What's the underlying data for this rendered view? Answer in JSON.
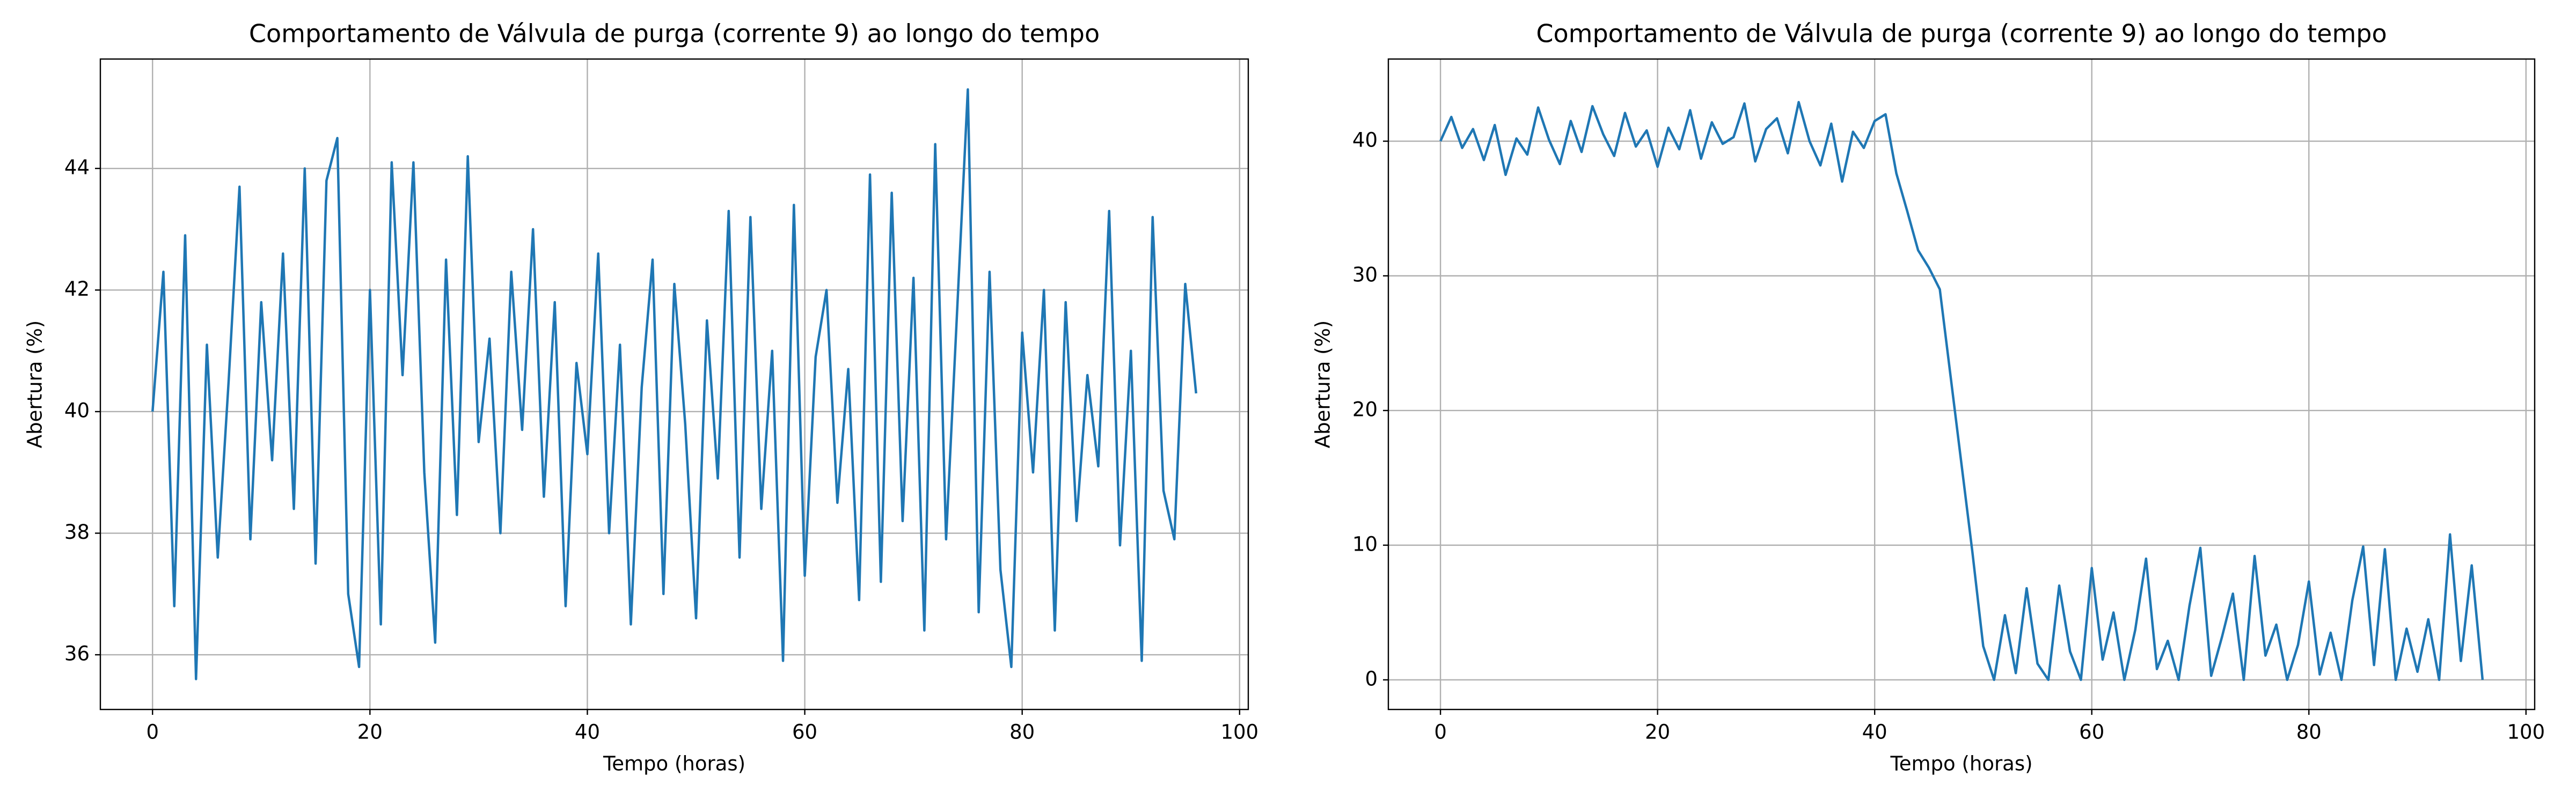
{
  "chart_data": [
    {
      "type": "line",
      "title": "Comportamento de Válvula de purga (corrente 9) ao longo do tempo",
      "xlabel": "Tempo (horas)",
      "ylabel": "Abertura (%)",
      "x": [
        0,
        1,
        2,
        3,
        4,
        5,
        6,
        7,
        8,
        9,
        10,
        11,
        12,
        13,
        14,
        15,
        16,
        17,
        18,
        19,
        20,
        21,
        22,
        23,
        24,
        25,
        26,
        27,
        28,
        29,
        30,
        31,
        32,
        33,
        34,
        35,
        36,
        37,
        38,
        39,
        40,
        41,
        42,
        43,
        44,
        45,
        46,
        47,
        48,
        49,
        50,
        51,
        52,
        53,
        54,
        55,
        56,
        57,
        58,
        59,
        60,
        61,
        62,
        63,
        64,
        65,
        66,
        67,
        68,
        69,
        70,
        71,
        72,
        73,
        74,
        75,
        76,
        77,
        78,
        79,
        80,
        81,
        82,
        83,
        84,
        85,
        86,
        87,
        88,
        89,
        90,
        91,
        92,
        93,
        94,
        95,
        96
      ],
      "values": [
        40.0,
        42.3,
        36.8,
        42.9,
        35.6,
        41.1,
        37.6,
        40.5,
        43.7,
        37.9,
        41.8,
        39.2,
        42.6,
        38.4,
        44.0,
        37.5,
        43.8,
        44.5,
        37.0,
        35.8,
        42.0,
        36.5,
        44.1,
        40.6,
        44.1,
        39.0,
        36.2,
        42.5,
        38.3,
        44.2,
        39.5,
        41.2,
        38.0,
        42.3,
        39.7,
        43.0,
        38.6,
        41.8,
        36.8,
        40.8,
        39.3,
        42.6,
        38.0,
        41.1,
        36.5,
        40.4,
        42.5,
        37.0,
        42.1,
        39.8,
        36.6,
        41.5,
        38.9,
        43.3,
        37.6,
        43.2,
        38.4,
        41.0,
        35.9,
        43.4,
        37.3,
        40.9,
        42.0,
        38.5,
        40.7,
        36.9,
        43.9,
        37.2,
        43.6,
        38.2,
        42.2,
        36.4,
        44.4,
        37.9,
        41.6,
        45.3,
        36.7,
        42.3,
        37.4,
        35.8,
        41.3,
        39.0,
        42.0,
        36.4,
        41.8,
        38.2,
        40.6,
        39.1,
        43.3,
        37.8,
        41.0,
        35.9,
        43.2,
        38.7,
        37.9,
        42.1,
        40.3
      ],
      "color": "#1f77b4",
      "xlim": [
        -4.8,
        100.8
      ],
      "ylim": [
        35.1,
        45.8
      ],
      "xticks": [
        0,
        20,
        40,
        60,
        80,
        100
      ],
      "yticks": [
        36,
        38,
        40,
        42,
        44
      ],
      "grid": true
    },
    {
      "type": "line",
      "title": "Comportamento de Válvula de purga (corrente 9) ao longo do tempo",
      "xlabel": "Tempo (horas)",
      "ylabel": "Abertura (%)",
      "x": [
        0,
        1,
        2,
        3,
        4,
        5,
        6,
        7,
        8,
        9,
        10,
        11,
        12,
        13,
        14,
        15,
        16,
        17,
        18,
        19,
        20,
        21,
        22,
        23,
        24,
        25,
        26,
        27,
        28,
        29,
        30,
        31,
        32,
        33,
        34,
        35,
        36,
        37,
        38,
        39,
        40,
        41,
        42,
        43,
        44,
        45,
        46,
        47,
        48,
        49,
        50,
        51,
        52,
        53,
        54,
        55,
        56,
        57,
        58,
        59,
        60,
        61,
        62,
        63,
        64,
        65,
        66,
        67,
        68,
        69,
        70,
        71,
        72,
        73,
        74,
        75,
        76,
        77,
        78,
        79,
        80,
        81,
        82,
        83,
        84,
        85,
        86,
        87,
        88,
        89,
        90,
        91,
        92,
        93,
        94,
        95,
        96
      ],
      "values": [
        40.0,
        41.8,
        39.5,
        40.9,
        38.6,
        41.2,
        37.5,
        40.2,
        39.0,
        42.5,
        40.1,
        38.3,
        41.5,
        39.2,
        42.6,
        40.5,
        38.9,
        42.1,
        39.6,
        40.8,
        38.1,
        41.0,
        39.4,
        42.3,
        38.7,
        41.4,
        39.8,
        40.3,
        42.8,
        38.5,
        40.9,
        41.7,
        39.1,
        42.9,
        40.0,
        38.2,
        41.3,
        37.0,
        40.7,
        39.5,
        41.5,
        42.0,
        37.6,
        34.8,
        31.9,
        30.6,
        29.0,
        22.5,
        16.0,
        9.5,
        2.5,
        0,
        4.8,
        0.5,
        6.8,
        1.2,
        0,
        7.0,
        2.1,
        0,
        8.3,
        1.5,
        5.0,
        0,
        3.7,
        9.0,
        0.8,
        2.9,
        0,
        5.5,
        9.8,
        0.3,
        3.2,
        6.4,
        0,
        9.2,
        1.8,
        4.1,
        0,
        2.6,
        7.3,
        0.4,
        3.5,
        0,
        5.9,
        9.9,
        1.1,
        9.7,
        0,
        3.8,
        0.6,
        4.5,
        0,
        10.8,
        1.4,
        8.5,
        0
      ],
      "color": "#1f77b4",
      "xlim": [
        -4.8,
        100.8
      ],
      "ylim": [
        -2.2,
        46.1
      ],
      "xticks": [
        0,
        20,
        40,
        60,
        80,
        100
      ],
      "yticks": [
        0,
        10,
        20,
        30,
        40
      ],
      "grid": true
    }
  ]
}
